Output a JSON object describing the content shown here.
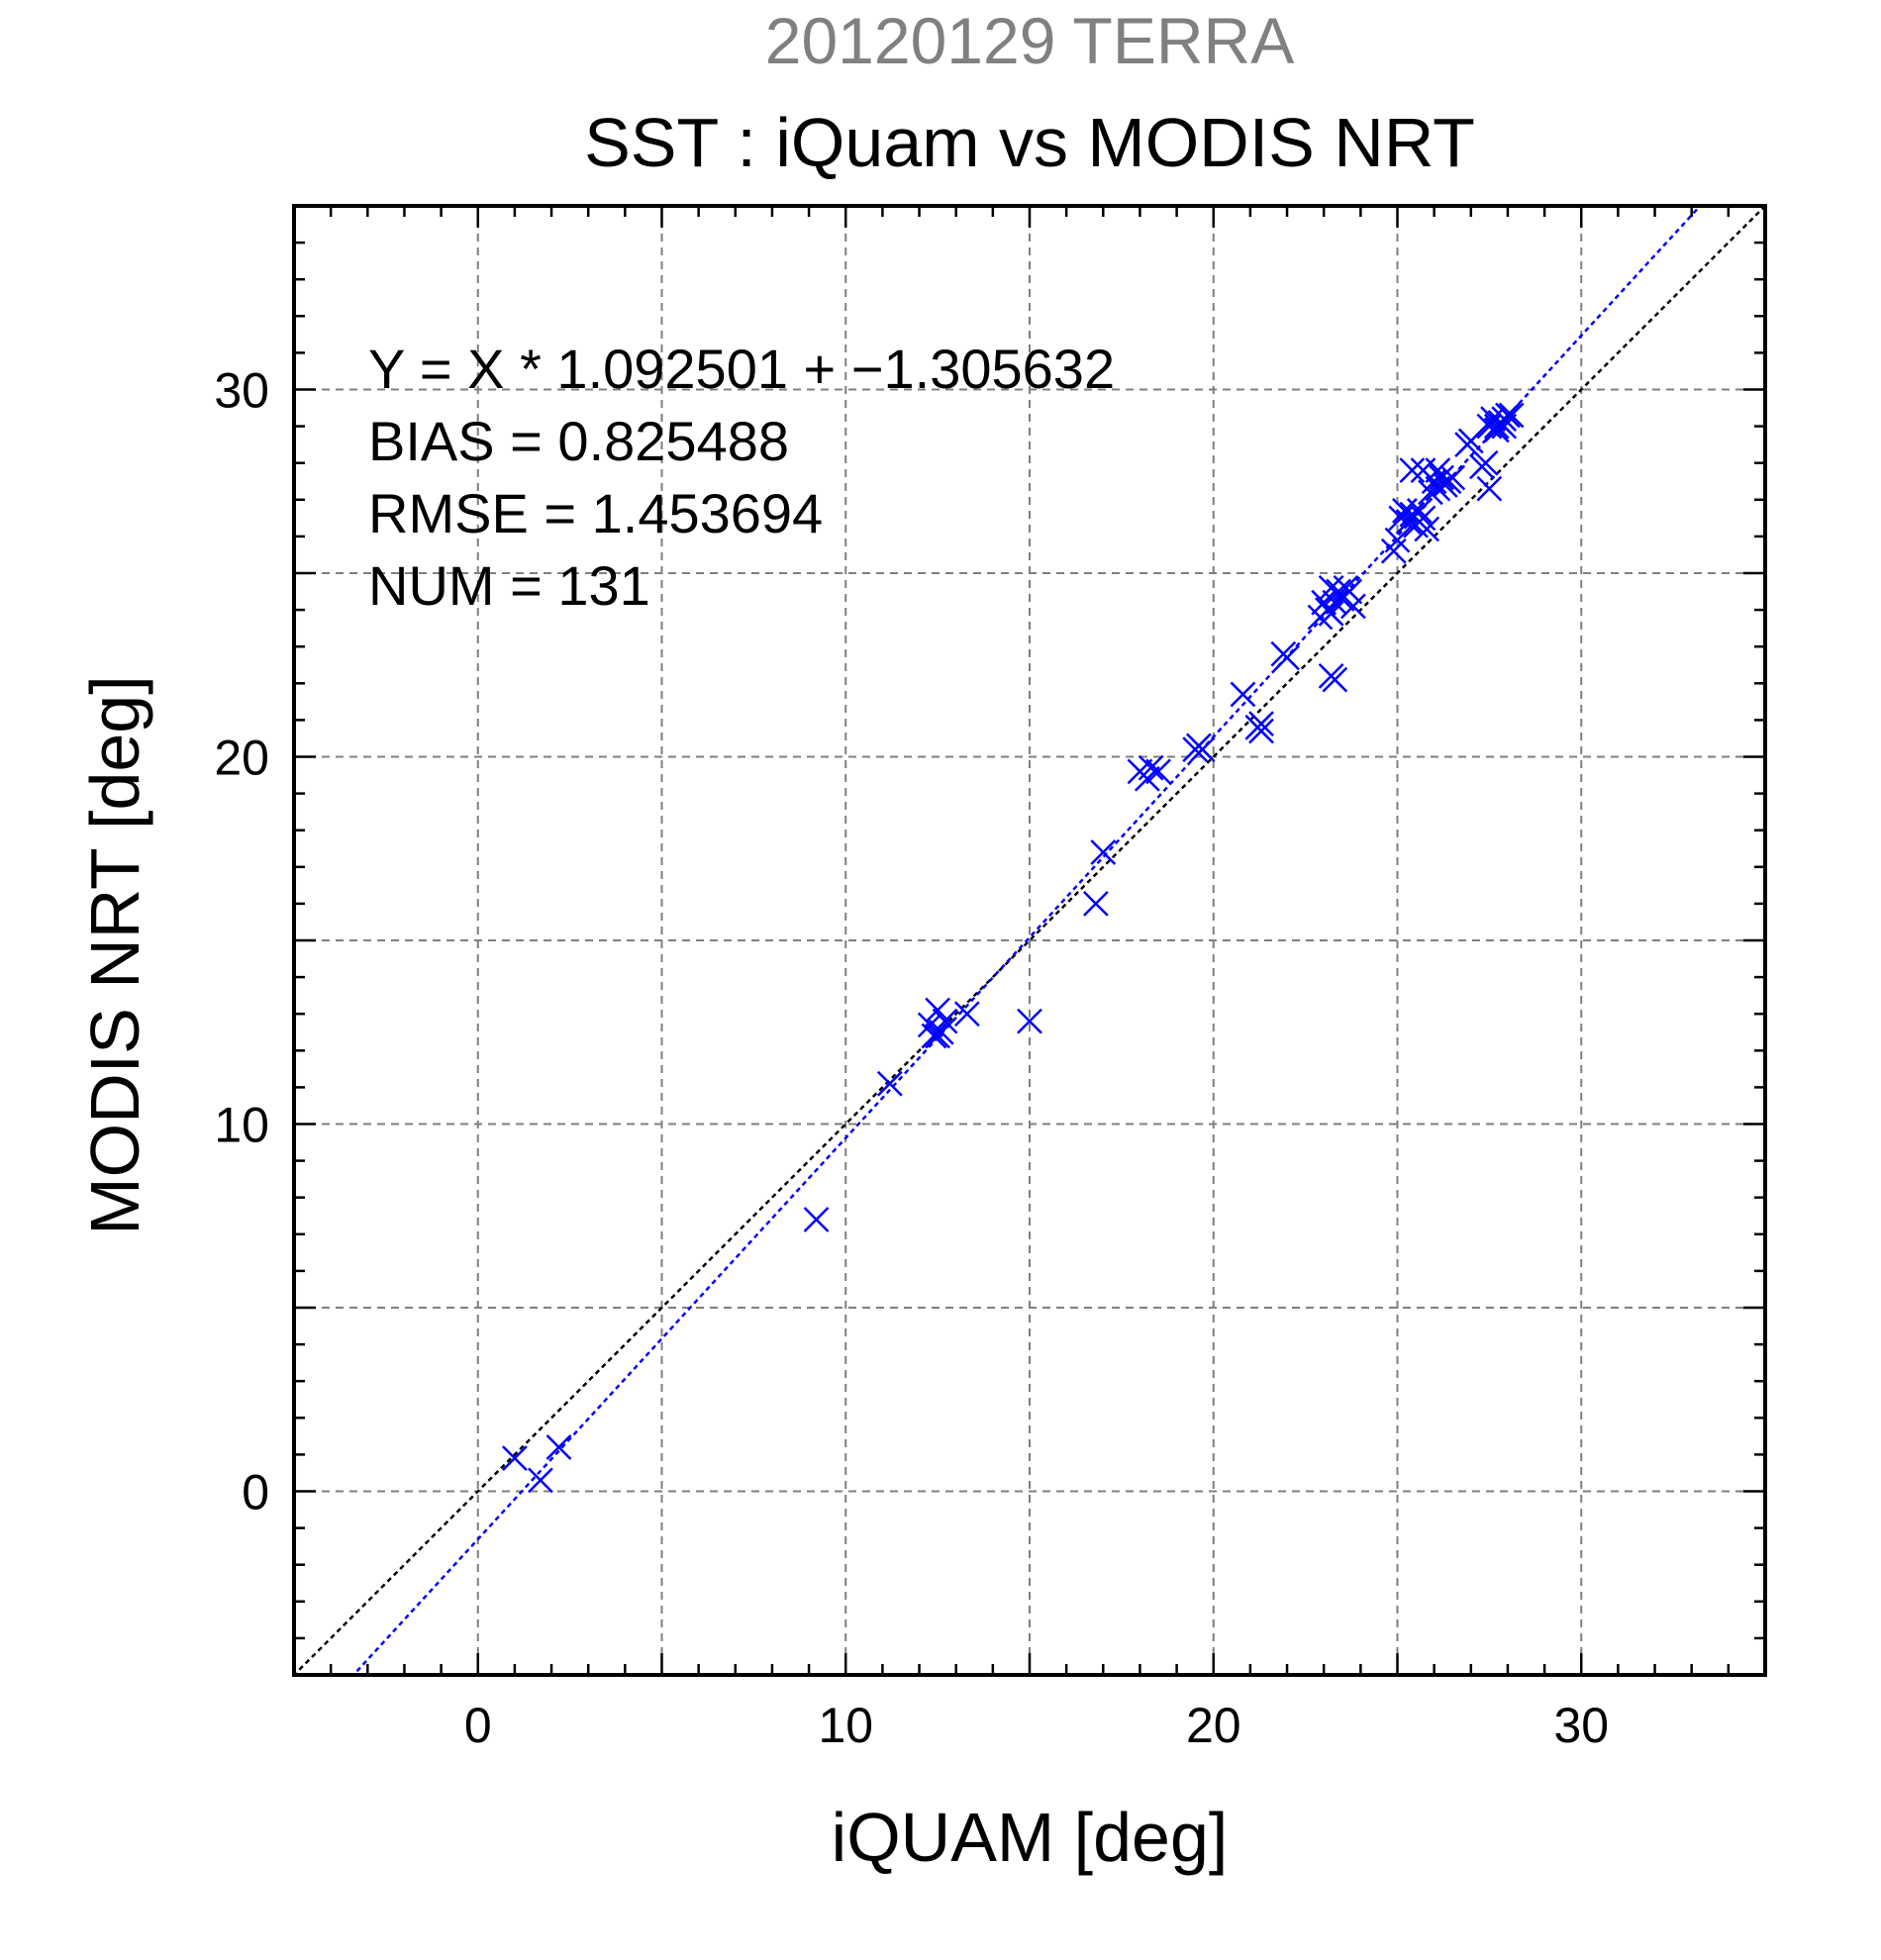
{
  "chart_data": {
    "type": "scatter",
    "title": "SST : iQuam vs MODIS NRT",
    "subtitle": "20120129 TERRA",
    "xlabel": "iQUAM [deg]",
    "ylabel": "MODIS NRT [deg]",
    "xlim": [
      -5,
      35
    ],
    "ylim": [
      -5,
      35
    ],
    "xticks": [
      0,
      10,
      20,
      30
    ],
    "yticks": [
      0,
      10,
      20,
      30
    ],
    "xtick_labels": [
      "0",
      "10",
      "20",
      "30"
    ],
    "ytick_labels": [
      "0",
      "10",
      "20",
      "30"
    ],
    "minor_step": 1,
    "grid_step": 5,
    "grid": true,
    "colors": {
      "points": "#0000ff",
      "fit_line": "#0000ff",
      "identity_line": "#000000",
      "grid": "#7f7f7f",
      "subtitle": "#808080"
    },
    "stats": [
      "Y = X * 1.092501 + −1.305632",
      "BIAS = 0.825488",
      "RMSE = 1.453694",
      "NUM = 131"
    ],
    "fit": {
      "slope": 1.092501,
      "intercept": -1.305632
    },
    "identity": {
      "slope": 1,
      "intercept": 0
    },
    "series": [
      {
        "marker": "x",
        "points": [
          [
            1.0,
            0.9
          ],
          [
            1.7,
            0.3
          ],
          [
            2.2,
            1.2
          ],
          [
            9.2,
            7.4
          ],
          [
            11.2,
            11.1
          ],
          [
            12.3,
            12.7
          ],
          [
            12.4,
            12.4
          ],
          [
            12.5,
            12.4
          ],
          [
            12.6,
            12.5
          ],
          [
            12.5,
            13.1
          ],
          [
            12.7,
            12.8
          ],
          [
            13.3,
            13.0
          ],
          [
            15.0,
            12.8
          ],
          [
            16.8,
            16.0
          ],
          [
            17.0,
            17.4
          ],
          [
            18.0,
            19.6
          ],
          [
            18.2,
            19.4
          ],
          [
            18.3,
            19.7
          ],
          [
            18.5,
            19.6
          ],
          [
            19.5,
            20.2
          ],
          [
            19.6,
            20.3
          ],
          [
            19.7,
            20.2
          ],
          [
            20.8,
            21.7
          ],
          [
            21.2,
            20.8
          ],
          [
            21.3,
            20.9
          ],
          [
            21.3,
            20.7
          ],
          [
            21.9,
            22.8
          ],
          [
            22.0,
            22.7
          ],
          [
            22.9,
            23.8
          ],
          [
            23.0,
            24.2
          ],
          [
            23.1,
            24.0
          ],
          [
            23.2,
            24.6
          ],
          [
            23.2,
            23.9
          ],
          [
            23.3,
            24.2
          ],
          [
            23.4,
            24.5
          ],
          [
            23.5,
            24.3
          ],
          [
            23.6,
            24.6
          ],
          [
            23.7,
            24.5
          ],
          [
            23.8,
            24.1
          ],
          [
            23.2,
            22.2
          ],
          [
            23.3,
            22.1
          ],
          [
            24.9,
            25.6
          ],
          [
            25.0,
            25.9
          ],
          [
            25.1,
            26.5
          ],
          [
            25.2,
            26.7
          ],
          [
            25.3,
            26.4
          ],
          [
            25.4,
            26.6
          ],
          [
            25.5,
            26.3
          ],
          [
            25.6,
            26.7
          ],
          [
            25.7,
            26.5
          ],
          [
            25.8,
            26.2
          ],
          [
            25.4,
            27.8
          ],
          [
            25.7,
            27.8
          ],
          [
            25.9,
            27.2
          ],
          [
            26.0,
            27.5
          ],
          [
            26.1,
            27.3
          ],
          [
            26.2,
            27.6
          ],
          [
            26.3,
            27.4
          ],
          [
            26.4,
            27.5
          ],
          [
            26.5,
            27.6
          ],
          [
            26.1,
            27.8
          ],
          [
            26.9,
            28.5
          ],
          [
            27.0,
            28.6
          ],
          [
            27.3,
            27.9
          ],
          [
            27.4,
            28.0
          ],
          [
            27.5,
            27.3
          ],
          [
            27.5,
            29.0
          ],
          [
            27.6,
            29.2
          ],
          [
            27.7,
            29.0
          ],
          [
            27.8,
            29.1
          ],
          [
            27.9,
            29.2
          ],
          [
            28.0,
            29.3
          ],
          [
            28.1,
            29.3
          ],
          [
            27.7,
            28.9
          ],
          [
            27.9,
            29.0
          ]
        ]
      }
    ]
  }
}
